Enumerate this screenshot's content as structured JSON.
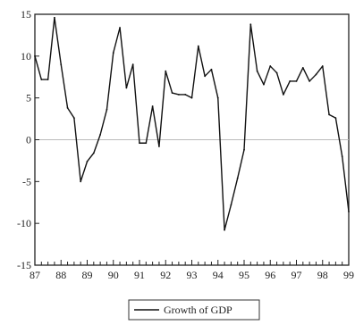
{
  "chart_data": {
    "type": "line",
    "title": "",
    "xlabel": "",
    "ylabel": "",
    "ylim": [
      -15,
      15
    ],
    "xlim": [
      1987,
      1999
    ],
    "yticks": [
      -15,
      -10,
      -5,
      0,
      5,
      10,
      15
    ],
    "xticks": [
      {
        "label": "87",
        "value": 1987
      },
      {
        "label": "88",
        "value": 1988
      },
      {
        "label": "89",
        "value": 1989
      },
      {
        "label": "90",
        "value": 1990
      },
      {
        "label": "91",
        "value": 1991
      },
      {
        "label": "92",
        "value": 1992
      },
      {
        "label": "93",
        "value": 1993
      },
      {
        "label": "94",
        "value": 1994
      },
      {
        "label": "95",
        "value": 1995
      },
      {
        "label": "96",
        "value": 1996
      },
      {
        "label": "97",
        "value": 1997
      },
      {
        "label": "98",
        "value": 1998
      },
      {
        "label": "99",
        "value": 1999
      }
    ],
    "zero_line": true,
    "grid": false,
    "legend_position": "bottom-center",
    "line_color": "#111111",
    "zero_line_color": "#bbbbbb",
    "series": [
      {
        "name": "Growth of GDP",
        "x": [
          1987.0,
          1987.25,
          1987.5,
          1987.75,
          1988.0,
          1988.25,
          1988.5,
          1988.75,
          1989.0,
          1989.25,
          1989.5,
          1989.75,
          1990.0,
          1990.25,
          1990.5,
          1990.75,
          1991.0,
          1991.25,
          1991.5,
          1991.75,
          1992.0,
          1992.25,
          1992.5,
          1992.75,
          1993.0,
          1993.25,
          1993.5,
          1993.75,
          1994.0,
          1994.25,
          1994.5,
          1994.75,
          1995.0,
          1995.25,
          1995.5,
          1995.75,
          1996.0,
          1996.25,
          1996.5,
          1996.75,
          1997.0,
          1997.25,
          1997.5,
          1997.75,
          1998.0,
          1998.25,
          1998.5,
          1998.75,
          1999.0
        ],
        "values": [
          10.0,
          7.2,
          7.2,
          14.6,
          9.0,
          3.8,
          2.6,
          -5.0,
          -2.6,
          -1.6,
          0.6,
          3.6,
          10.4,
          13.4,
          6.2,
          9.0,
          -0.4,
          -0.4,
          4.0,
          -0.8,
          8.2,
          5.6,
          5.4,
          5.4,
          5.0,
          11.2,
          7.6,
          8.4,
          5.0,
          -10.8,
          -7.8,
          -4.6,
          -1.2,
          13.8,
          8.2,
          6.6,
          8.8,
          8.0,
          5.4,
          7.0,
          7.0,
          8.6,
          7.0,
          7.8,
          8.8,
          3.0,
          2.6,
          -2.0,
          -8.6
        ]
      }
    ]
  }
}
